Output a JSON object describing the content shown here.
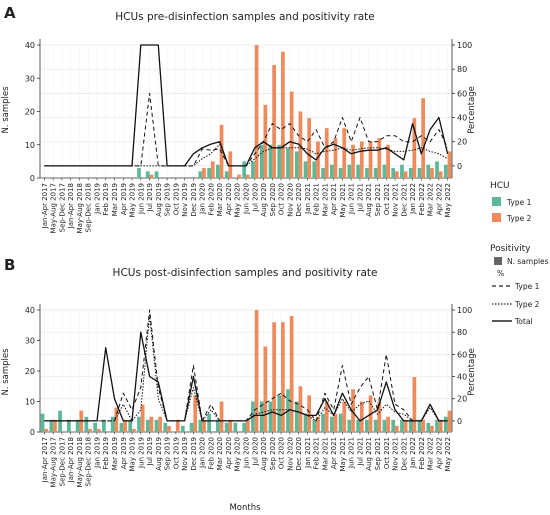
{
  "figure_label": "Months",
  "legend": {
    "hcu_title": "HCU",
    "hcu_items": [
      {
        "label": "Type 1",
        "color": "#5bb899"
      },
      {
        "label": "Type 2",
        "color": "#ee8a5c"
      }
    ],
    "positivity_title": "Positivity",
    "samples_label": "N. samples",
    "percent_title": "%",
    "line_items": [
      {
        "label": "Type 1",
        "style": "dashed"
      },
      {
        "label": "Type 2",
        "style": "dotted"
      },
      {
        "label": "Total",
        "style": "solid"
      }
    ]
  },
  "chart_data": [
    {
      "type": "bar",
      "panel": "A",
      "title": "HCUs pre-disinfection samples and positivity rate",
      "ylabel": "N. samples",
      "ylabel_right": "Percentage",
      "ylim": [
        0,
        40
      ],
      "ylim_right": [
        -10,
        100
      ],
      "yticks": [
        0,
        10,
        20,
        30,
        40
      ],
      "yticks_right": [
        0,
        20,
        40,
        60,
        80,
        100
      ],
      "categories": [
        "Jan-Apr 2017",
        "May-Aug 2017",
        "Sep-Dec 2017",
        "Jan-Apr 2018",
        "May-Aug 2018",
        "Sep-Dec 2018",
        "Jan 2019",
        "Feb 2019",
        "Mar 2019",
        "Apr 2019",
        "May 2019",
        "Jun 2019",
        "Jul 2019",
        "Aug 2019",
        "Sep 2019",
        "Oct 2019",
        "Nov 2019",
        "Dec 2019",
        "Jan 2020",
        "Feb 2020",
        "Mar 2020",
        "Apr 2020",
        "May 2020",
        "Jun 2020",
        "Jul 2020",
        "Aug 2020",
        "Sep 2020",
        "Oct 2020",
        "Nov 2020",
        "Dec 2020",
        "Jan 2021",
        "Feb 2021",
        "Mar 2021",
        "Apr 2021",
        "May 2021",
        "Jun 2021",
        "Jul 2021",
        "Aug 2021",
        "Sep 2021",
        "Oct 2021",
        "Nov 2021",
        "Dec 2021",
        "Jan 2022",
        "Feb 2022",
        "Mar 2022",
        "Apr 2022",
        "May 2022"
      ],
      "series": [
        {
          "name": "Type 1",
          "kind": "bar",
          "values": [
            0,
            0,
            0,
            0,
            0,
            0,
            0,
            0,
            0,
            0,
            0,
            3,
            2,
            2,
            0,
            0,
            0,
            0,
            2,
            3,
            4,
            2,
            0,
            5,
            5,
            10,
            10,
            10,
            9,
            8,
            5,
            5,
            3,
            4,
            3,
            4,
            4,
            3,
            3,
            4,
            3,
            4,
            3,
            3,
            4,
            5,
            4
          ]
        },
        {
          "name": "Type 2",
          "kind": "bar",
          "values": [
            0,
            0,
            0,
            0,
            0,
            0,
            0,
            0,
            0,
            0,
            0,
            0,
            1,
            0,
            0,
            0,
            0,
            0,
            3,
            5,
            16,
            8,
            1,
            1,
            40,
            22,
            34,
            38,
            26,
            20,
            18,
            11,
            15,
            12,
            15,
            10,
            11,
            11,
            12,
            10,
            2,
            2,
            18,
            24,
            3,
            2,
            8
          ]
        },
        {
          "name": "Type 1",
          "kind": "line",
          "style": "dashed",
          "values": [
            0,
            0,
            0,
            0,
            0,
            0,
            0,
            0,
            0,
            0,
            0,
            0,
            60,
            0,
            0,
            0,
            0,
            0,
            14,
            13,
            14,
            0,
            0,
            0,
            10,
            20,
            35,
            30,
            35,
            25,
            20,
            30,
            15,
            20,
            40,
            20,
            40,
            20,
            20,
            25,
            25,
            20,
            20,
            25,
            20,
            30,
            15
          ]
        },
        {
          "name": "Type 2",
          "kind": "line",
          "style": "dotted",
          "values": [
            0,
            0,
            0,
            0,
            0,
            0,
            0,
            0,
            0,
            0,
            0,
            0,
            0,
            0,
            0,
            0,
            0,
            0,
            6,
            10,
            18,
            0,
            0,
            0,
            6,
            12,
            15,
            15,
            15,
            15,
            14,
            10,
            12,
            13,
            15,
            13,
            14,
            15,
            15,
            14,
            12,
            12,
            13,
            15,
            12,
            10,
            6
          ]
        },
        {
          "name": "Total",
          "kind": "line",
          "style": "solid",
          "values": [
            0,
            0,
            0,
            0,
            0,
            0,
            0,
            0,
            0,
            0,
            0,
            100,
            100,
            100,
            0,
            0,
            0,
            10,
            15,
            18,
            20,
            0,
            0,
            0,
            15,
            20,
            15,
            15,
            20,
            18,
            10,
            5,
            15,
            18,
            15,
            10,
            12,
            13,
            13,
            15,
            10,
            5,
            35,
            10,
            30,
            40,
            10
          ]
        }
      ]
    },
    {
      "type": "bar",
      "panel": "B",
      "title": "HCUs post-disinfection samples and positivity rate",
      "ylabel": "N. samples",
      "ylabel_right": "Percentage",
      "ylim": [
        0,
        40
      ],
      "ylim_right": [
        -10,
        100
      ],
      "yticks": [
        0,
        10,
        20,
        30,
        40
      ],
      "yticks_right": [
        0,
        20,
        40,
        60,
        80,
        100
      ],
      "categories": [
        "Jan-Apr 2017",
        "May-Aug 2017",
        "Sep-Dec 2017",
        "Jan-Apr 2018",
        "May-Aug 2018",
        "Sep-Dec 2018",
        "Jan 2019",
        "Feb 2019",
        "Mar 2019",
        "Apr 2019",
        "May 2019",
        "Jun 2019",
        "Jul 2019",
        "Aug 2019",
        "Sep 2019",
        "Oct 2019",
        "Nov 2019",
        "Dec 2019",
        "Jan 2020",
        "Feb 2020",
        "Mar 2020",
        "Apr 2020",
        "May 2020",
        "Jun 2020",
        "Jul 2020",
        "Aug 2020",
        "Sep 2020",
        "Oct 2020",
        "Nov 2020",
        "Dec 2020",
        "Jan 2021",
        "Feb 2021",
        "Mar 2021",
        "Apr 2021",
        "May 2021",
        "Jun 2021",
        "Jul 2021",
        "Aug 2021",
        "Sep 2021",
        "Oct 2021",
        "Nov 2021",
        "Dec 2021",
        "Jan 2022",
        "Feb 2022",
        "Mar 2022",
        "Apr 2022",
        "May 2022"
      ],
      "series": [
        {
          "name": "Type 1",
          "kind": "bar",
          "values": [
            6,
            4,
            7,
            4,
            4,
            5,
            3,
            4,
            5,
            3,
            4,
            5,
            4,
            4,
            3,
            0,
            2,
            3,
            4,
            6,
            4,
            3,
            3,
            3,
            10,
            10,
            10,
            12,
            14,
            10,
            6,
            4,
            6,
            5,
            6,
            4,
            4,
            4,
            4,
            4,
            4,
            4,
            4,
            4,
            3,
            4,
            5
          ]
        },
        {
          "name": "Type 2",
          "kind": "bar",
          "values": [
            1,
            4,
            0,
            0,
            7,
            1,
            1,
            0,
            8,
            4,
            1,
            9,
            5,
            5,
            2,
            4,
            0,
            12,
            4,
            0,
            10,
            4,
            0,
            4,
            40,
            28,
            36,
            36,
            38,
            15,
            12,
            5,
            10,
            6,
            10,
            14,
            10,
            12,
            10,
            5,
            2,
            4,
            18,
            4,
            2,
            4,
            7
          ]
        },
        {
          "name": "Type 1",
          "kind": "line",
          "style": "dashed",
          "values": [
            0,
            0,
            0,
            0,
            0,
            0,
            0,
            0,
            0,
            25,
            10,
            30,
            100,
            30,
            0,
            0,
            0,
            50,
            0,
            15,
            0,
            0,
            0,
            0,
            10,
            15,
            20,
            25,
            18,
            15,
            10,
            0,
            25,
            10,
            50,
            15,
            30,
            40,
            10,
            60,
            15,
            10,
            0,
            0,
            15,
            0,
            0
          ]
        },
        {
          "name": "Type 2",
          "kind": "line",
          "style": "dotted",
          "values": [
            0,
            0,
            0,
            0,
            0,
            0,
            0,
            0,
            0,
            15,
            0,
            10,
            95,
            20,
            0,
            0,
            0,
            30,
            0,
            10,
            0,
            0,
            0,
            0,
            6,
            8,
            10,
            10,
            10,
            8,
            5,
            0,
            12,
            5,
            20,
            8,
            15,
            18,
            6,
            15,
            8,
            6,
            0,
            0,
            12,
            0,
            0
          ]
        },
        {
          "name": "Total",
          "kind": "line",
          "style": "solid",
          "values": [
            0,
            0,
            0,
            0,
            0,
            0,
            0,
            66,
            20,
            0,
            0,
            80,
            40,
            35,
            0,
            0,
            0,
            40,
            0,
            0,
            0,
            0,
            0,
            0,
            5,
            5,
            8,
            5,
            10,
            8,
            5,
            5,
            20,
            5,
            25,
            10,
            0,
            5,
            10,
            35,
            10,
            0,
            0,
            0,
            15,
            0,
            0
          ]
        }
      ]
    }
  ]
}
